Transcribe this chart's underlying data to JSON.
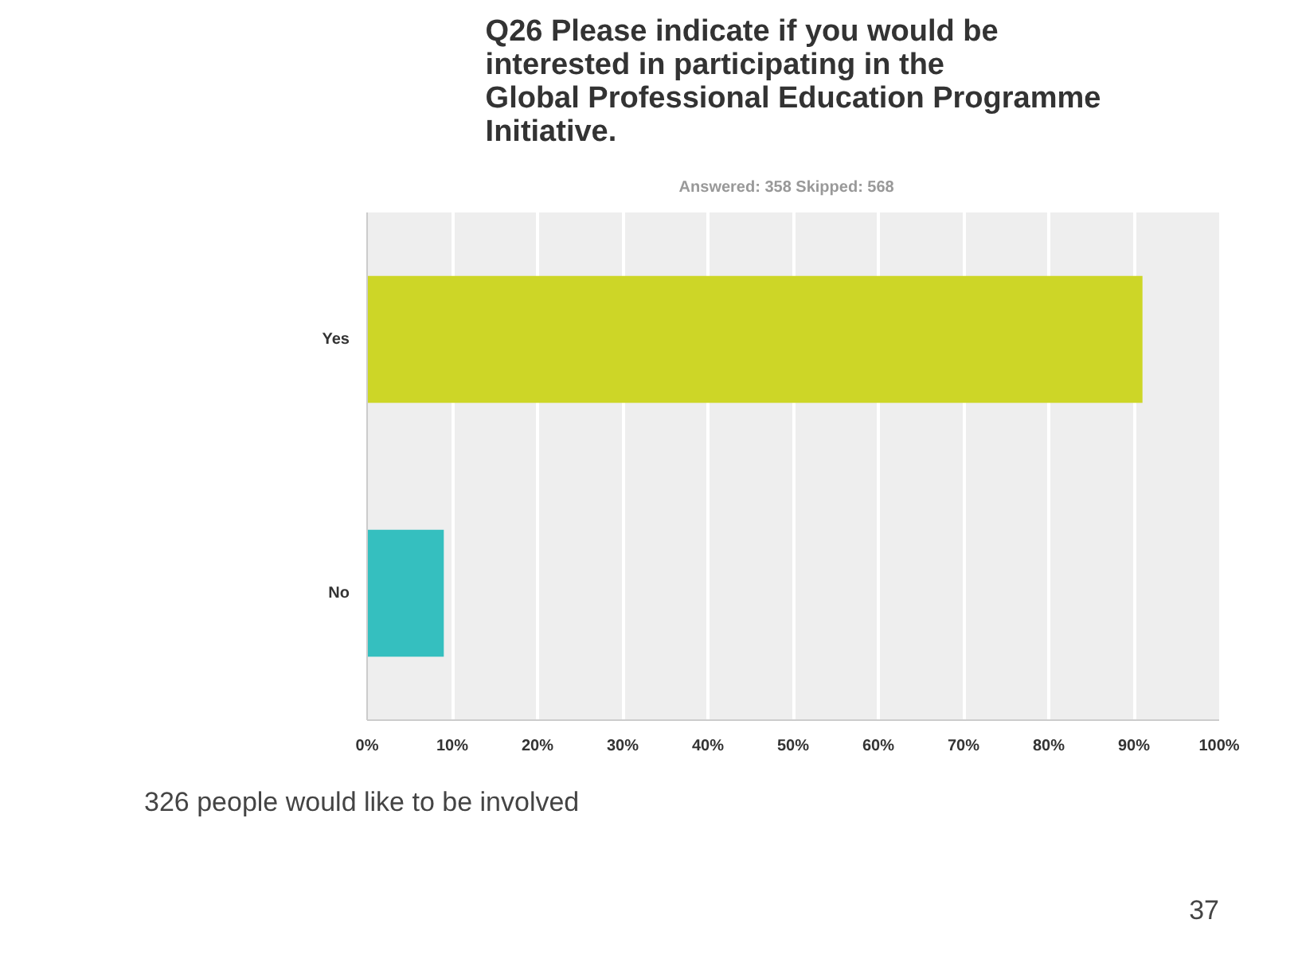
{
  "chart_data": {
    "type": "bar",
    "orientation": "horizontal",
    "title": "Q26 Please indicate if you would be interested in participating in the Global Professional Education Programme Initiative.",
    "subtitle": "Answered: 358    Skipped: 568",
    "categories": [
      "Yes",
      "No"
    ],
    "values": [
      91,
      9
    ],
    "colors": [
      "#cdd627",
      "#35bfbf"
    ],
    "xlim": [
      0,
      100
    ],
    "xticks": [
      {
        "value": 0,
        "label": "0%"
      },
      {
        "value": 10,
        "label": "10%"
      },
      {
        "value": 20,
        "label": "20%"
      },
      {
        "value": 30,
        "label": "30%"
      },
      {
        "value": 40,
        "label": "40%"
      },
      {
        "value": 50,
        "label": "50%"
      },
      {
        "value": 60,
        "label": "60%"
      },
      {
        "value": 70,
        "label": "70%"
      },
      {
        "value": 80,
        "label": "80%"
      },
      {
        "value": 90,
        "label": "90%"
      },
      {
        "value": 100,
        "label": "100%"
      }
    ],
    "grid": "x",
    "annotations": [
      "326 people would like to be involved",
      "37"
    ]
  }
}
